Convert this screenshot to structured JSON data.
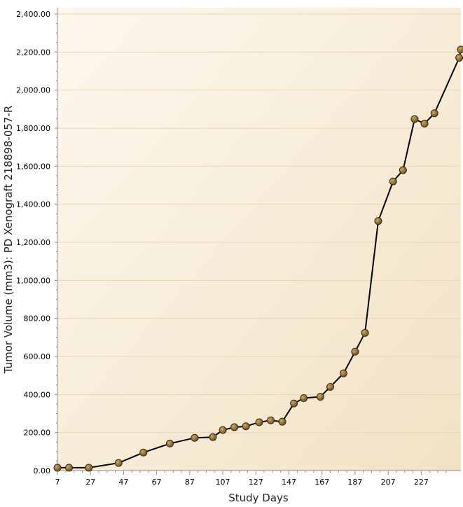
{
  "chart_data": {
    "type": "line",
    "xlabel": "Study Days",
    "ylabel": "Tumor Volume (mm3): PD Xenograft 218898-057-R",
    "xlim": [
      7,
      251
    ],
    "ylim": [
      0,
      2400
    ],
    "x_ticks": [
      7,
      27,
      47,
      67,
      87,
      107,
      127,
      147,
      167,
      187,
      207,
      227
    ],
    "x_tick_labels": [
      "7",
      "27",
      "47",
      "67",
      "87",
      "107",
      "127",
      "147",
      "167",
      "187",
      "207",
      "227"
    ],
    "y_ticks": [
      0,
      200,
      400,
      600,
      800,
      1000,
      1200,
      1400,
      1600,
      1800,
      2000,
      2200,
      2400
    ],
    "y_tick_labels": [
      "0.00",
      "200.00",
      "400.00",
      "600.00",
      "800.00",
      "1,000.00",
      "1,200.00",
      "1,400.00",
      "1,600.00",
      "1,800.00",
      "2,000.00",
      "2,200.00",
      "2,400.00"
    ],
    "grid": true,
    "series": [
      {
        "x": [
          7,
          14,
          26,
          44,
          59,
          75,
          90,
          101,
          107,
          114,
          121,
          129,
          136,
          143,
          150,
          156,
          166,
          172,
          180,
          187,
          193,
          201,
          210,
          216,
          223,
          229,
          235,
          250,
          251
        ],
        "values": [
          15,
          15,
          15,
          40,
          95,
          142,
          172,
          176,
          213,
          228,
          233,
          254,
          264,
          257,
          353,
          381,
          388,
          440,
          511,
          625,
          724,
          1312,
          1520,
          1579,
          1848,
          1824,
          1878,
          2170,
          2213
        ]
      }
    ],
    "colors": {
      "line": "#000000",
      "marker_fill": "#8a6a2f",
      "marker_stroke": "#3c2a0e",
      "plot_bg_light": "#fdf6ec",
      "plot_bg_dark": "#f3e4c8",
      "grid": "#e8d6b6",
      "axis": "#8c8c8c"
    }
  }
}
